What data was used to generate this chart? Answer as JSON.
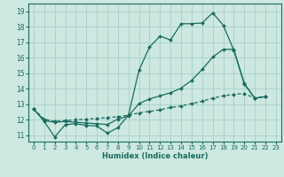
{
  "xlabel": "Humidex (Indice chaleur)",
  "bg_color": "#cce8e0",
  "grid_color": "#a8d0c8",
  "line_color": "#1a6b60",
  "xlim": [
    -0.5,
    23.5
  ],
  "ylim": [
    10.6,
    19.5
  ],
  "xticks": [
    0,
    1,
    2,
    3,
    4,
    5,
    6,
    7,
    8,
    9,
    10,
    11,
    12,
    13,
    14,
    15,
    16,
    17,
    18,
    19,
    20,
    21,
    22,
    23
  ],
  "yticks": [
    11,
    12,
    13,
    14,
    15,
    16,
    17,
    18,
    19
  ],
  "line1_x": [
    0,
    1,
    2,
    3,
    4,
    5,
    6,
    7,
    8,
    9,
    10,
    11,
    12,
    13,
    14,
    15,
    16,
    17,
    18,
    19,
    20,
    21,
    22
  ],
  "line1_y": [
    12.7,
    11.9,
    10.9,
    11.7,
    11.75,
    11.65,
    11.6,
    11.15,
    11.5,
    12.3,
    15.2,
    16.7,
    17.4,
    17.15,
    18.2,
    18.2,
    18.25,
    18.9,
    18.1,
    16.5,
    14.3,
    13.4,
    13.5
  ],
  "line2_x": [
    0,
    1,
    2,
    3,
    4,
    5,
    6,
    7,
    8,
    9,
    10,
    11,
    12,
    13,
    14,
    15,
    16,
    17,
    18,
    19,
    20,
    21,
    22
  ],
  "line2_y": [
    12.7,
    11.95,
    11.85,
    11.9,
    11.85,
    11.8,
    11.75,
    11.7,
    12.05,
    12.25,
    13.05,
    13.35,
    13.55,
    13.75,
    14.05,
    14.55,
    15.25,
    16.05,
    16.55,
    16.55,
    14.35,
    13.4,
    13.5
  ],
  "line3_x": [
    0,
    1,
    2,
    3,
    4,
    5,
    6,
    7,
    8,
    9,
    10,
    11,
    12,
    13,
    14,
    15,
    16,
    17,
    18,
    19,
    20,
    21,
    22
  ],
  "line3_y": [
    12.7,
    12.05,
    11.9,
    11.95,
    12.0,
    12.05,
    12.1,
    12.15,
    12.2,
    12.3,
    12.45,
    12.55,
    12.65,
    12.8,
    12.9,
    13.05,
    13.2,
    13.4,
    13.55,
    13.65,
    13.7,
    13.4,
    13.5
  ]
}
